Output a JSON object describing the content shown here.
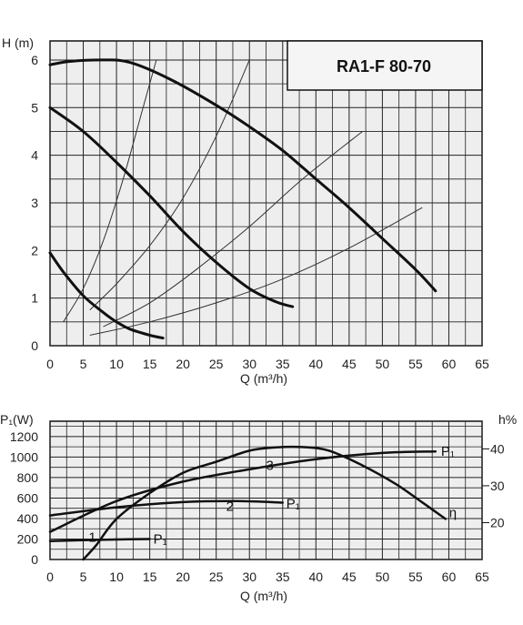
{
  "chart_data": [
    {
      "type": "line",
      "title": "RA1-F 80-70",
      "xlabel": "Q (m³/h)",
      "ylabel": "H (m)",
      "xlim": [
        0,
        65
      ],
      "ylim": [
        0,
        6.4
      ],
      "x_ticks": [
        "0",
        "5",
        "10",
        "15",
        "20",
        "25",
        "30",
        "35",
        "40",
        "45",
        "50",
        "55",
        "60",
        "65"
      ],
      "y_ticks": [
        "0",
        "1",
        "2",
        "3",
        "4",
        "5",
        "6"
      ],
      "grid": true,
      "series": [
        {
          "label": "",
          "points": [
            [
              0,
              5.9
            ],
            [
              3,
              5.97
            ],
            [
              8,
              6.0
            ],
            [
              12,
              5.95
            ],
            [
              18,
              5.6
            ],
            [
              25,
              5.05
            ],
            [
              30,
              4.6
            ],
            [
              35,
              4.1
            ],
            [
              40,
              3.5
            ],
            [
              45,
              2.9
            ],
            [
              50,
              2.25
            ],
            [
              55,
              1.6
            ],
            [
              58,
              1.15
            ]
          ]
        },
        {
          "label": "",
          "points": [
            [
              0,
              5.0
            ],
            [
              5,
              4.5
            ],
            [
              10,
              3.85
            ],
            [
              15,
              3.15
            ],
            [
              20,
              2.4
            ],
            [
              25,
              1.75
            ],
            [
              30,
              1.2
            ],
            [
              34,
              0.92
            ],
            [
              36.5,
              0.82
            ]
          ]
        },
        {
          "label": "",
          "points": [
            [
              0,
              1.95
            ],
            [
              2,
              1.55
            ],
            [
              5,
              1.05
            ],
            [
              8,
              0.7
            ],
            [
              10,
              0.5
            ],
            [
              12,
              0.35
            ],
            [
              15,
              0.22
            ],
            [
              17,
              0.16
            ]
          ]
        }
      ],
      "system_curves": [
        [
          [
            2,
            0.5
          ],
          [
            5,
            1.2
          ],
          [
            8,
            2.2
          ],
          [
            11,
            3.5
          ],
          [
            14,
            5.0
          ],
          [
            16,
            6.0
          ]
        ],
        [
          [
            6,
            0.75
          ],
          [
            10,
            1.3
          ],
          [
            15,
            2.1
          ],
          [
            20,
            3.1
          ],
          [
            25,
            4.4
          ],
          [
            30,
            6.0
          ]
        ],
        [
          [
            8,
            0.4
          ],
          [
            15,
            0.9
          ],
          [
            22,
            1.6
          ],
          [
            30,
            2.5
          ],
          [
            38,
            3.5
          ],
          [
            47,
            4.5
          ]
        ],
        [
          [
            6,
            0.22
          ],
          [
            15,
            0.5
          ],
          [
            25,
            0.9
          ],
          [
            35,
            1.4
          ],
          [
            45,
            2.05
          ],
          [
            56,
            2.9
          ]
        ]
      ]
    },
    {
      "type": "line",
      "xlabel": "Q (m³/h)",
      "ylabel": "P₁(W)",
      "y2label": "h%",
      "xlim": [
        0,
        65
      ],
      "ylim": [
        0,
        1350
      ],
      "y2lim": [
        10,
        47.5
      ],
      "x_ticks": [
        "0",
        "5",
        "10",
        "15",
        "20",
        "25",
        "30",
        "35",
        "40",
        "45",
        "50",
        "55",
        "60",
        "65"
      ],
      "y_ticks": [
        "0",
        "200",
        "400",
        "600",
        "800",
        "1000",
        "1200"
      ],
      "y2_ticks": [
        "20",
        "30",
        "40"
      ],
      "grid": true,
      "power_series": [
        {
          "label": "P₁",
          "points": [
            [
              0,
              180
            ],
            [
              5,
              188
            ],
            [
              10,
              195
            ],
            [
              15,
              200
            ]
          ]
        },
        {
          "label": "P₁",
          "points": [
            [
              0,
              430
            ],
            [
              10,
              510
            ],
            [
              20,
              560
            ],
            [
              28,
              570
            ],
            [
              35,
              555
            ]
          ]
        },
        {
          "label": "P₁",
          "points": [
            [
              0,
              270
            ],
            [
              10,
              570
            ],
            [
              20,
              760
            ],
            [
              30,
              880
            ],
            [
              40,
              980
            ],
            [
              50,
              1040
            ],
            [
              58,
              1055
            ]
          ]
        }
      ],
      "efficiency_series": [
        {
          "label": "η",
          "points": [
            [
              5,
              10
            ],
            [
              7,
              14
            ],
            [
              10,
              21
            ],
            [
              15,
              28
            ],
            [
              20,
              33.5
            ],
            [
              25,
              36.5
            ],
            [
              30,
              39.5
            ],
            [
              34,
              40.4
            ],
            [
              38,
              40.5
            ],
            [
              42,
              39.5
            ],
            [
              47,
              35.5
            ],
            [
              52,
              30.5
            ],
            [
              56,
              25.5
            ],
            [
              59.5,
              21
            ]
          ]
        }
      ],
      "curve_numbers": [
        "1",
        "2",
        "3"
      ]
    }
  ]
}
